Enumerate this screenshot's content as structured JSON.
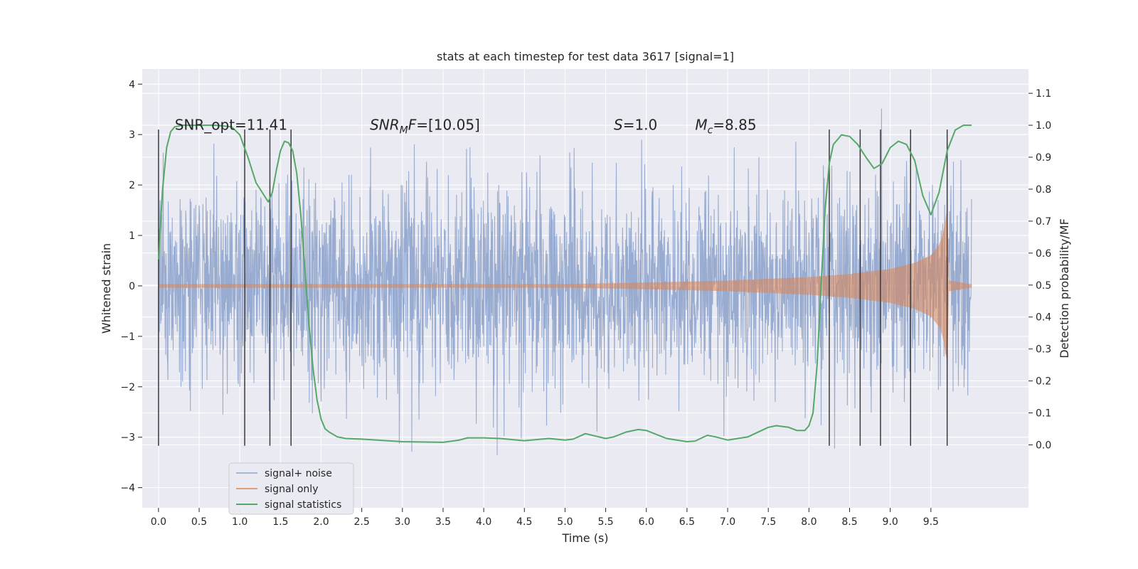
{
  "chart_data": {
    "type": "line",
    "title": "stats at each timestep for test data 3617 [signal=1]",
    "xlabel": "Time (s)",
    "ylabel_left": "Whitened strain",
    "ylabel_right": "Detection probability/MF",
    "xlim": [
      -0.2,
      10.7
    ],
    "ylim_left": [
      -4.4,
      4.3
    ],
    "ylim_right": [
      -0.197,
      1.176
    ],
    "x_ticks": [
      "0.0",
      "0.5",
      "1.0",
      "1.5",
      "2.0",
      "2.5",
      "3.0",
      "3.5",
      "4.0",
      "4.5",
      "5.0",
      "5.5",
      "6.0",
      "6.5",
      "7.0",
      "7.5",
      "8.0",
      "8.5",
      "9.0",
      "9.5"
    ],
    "y_ticks_left": [
      "−4",
      "−3",
      "−2",
      "−1",
      "0",
      "1",
      "2",
      "3",
      "4"
    ],
    "y_ticks_right": [
      "0.0",
      "0.1",
      "0.2",
      "0.3",
      "0.4",
      "0.5",
      "0.6",
      "0.7",
      "0.8",
      "0.9",
      "1.0",
      "1.1"
    ],
    "grid": true,
    "background": "#eaeaf2",
    "colors": {
      "signal_noise": "#8fa4cc",
      "signal_only": "#dd8452",
      "statistics": "#55a868",
      "markers": "#3a3a3a"
    },
    "annotations": [
      {
        "x": 0.2,
        "y": 3.15,
        "text": "SNR_opt=11.41"
      },
      {
        "x": 2.6,
        "y": 3.15,
        "text": "SNR_MF=[10.05]",
        "math": true
      },
      {
        "x": 5.6,
        "y": 3.15,
        "text": "S=1.0",
        "math": true
      },
      {
        "x": 6.6,
        "y": 3.15,
        "text": "M_c=8.85",
        "math": true
      }
    ],
    "series": [
      {
        "name": "signal+ noise",
        "axis": "left",
        "envelope": {
          "x_start": 0.0,
          "x_end": 10.0,
          "dense_band": [
            -1.5,
            1.5
          ],
          "spike_min": -3.6,
          "spike_max": 3.95
        }
      },
      {
        "name": "signal only",
        "axis": "left",
        "chirp": {
          "x_start": 0.0,
          "x_merge": 9.7,
          "x_end": 10.0,
          "amplitude_points": [
            [
              0.0,
              0.03
            ],
            [
              5.0,
              0.03
            ],
            [
              6.0,
              0.06
            ],
            [
              7.0,
              0.1
            ],
            [
              8.0,
              0.17
            ],
            [
              8.5,
              0.23
            ],
            [
              9.0,
              0.33
            ],
            [
              9.3,
              0.45
            ],
            [
              9.5,
              0.6
            ],
            [
              9.6,
              0.8
            ],
            [
              9.65,
              1.0
            ],
            [
              9.7,
              1.5
            ],
            [
              9.72,
              0.1
            ],
            [
              10.0,
              0.03
            ]
          ]
        }
      },
      {
        "name": "signal statistics",
        "axis": "right",
        "x": [
          0.0,
          0.05,
          0.1,
          0.15,
          0.2,
          0.3,
          0.5,
          0.7,
          0.9,
          1.0,
          1.1,
          1.2,
          1.3,
          1.35,
          1.4,
          1.45,
          1.5,
          1.55,
          1.6,
          1.65,
          1.7,
          1.75,
          1.8,
          1.85,
          1.9,
          1.95,
          2.0,
          2.05,
          2.1,
          2.2,
          2.3,
          2.5,
          3.0,
          3.5,
          3.7,
          3.8,
          4.0,
          4.2,
          4.5,
          4.8,
          5.0,
          5.1,
          5.25,
          5.5,
          5.6,
          5.75,
          5.9,
          6.0,
          6.25,
          6.5,
          6.6,
          6.75,
          6.85,
          7.0,
          7.25,
          7.5,
          7.6,
          7.75,
          7.85,
          7.95,
          8.0,
          8.05,
          8.1,
          8.15,
          8.2,
          8.25,
          8.3,
          8.4,
          8.5,
          8.6,
          8.7,
          8.8,
          8.9,
          9.0,
          9.1,
          9.2,
          9.3,
          9.4,
          9.5,
          9.6,
          9.7,
          9.8,
          9.9,
          10.0
        ],
        "values": [
          0.58,
          0.8,
          0.93,
          0.98,
          0.995,
          1.0,
          1.0,
          1.0,
          0.995,
          0.97,
          0.9,
          0.82,
          0.78,
          0.76,
          0.79,
          0.86,
          0.92,
          0.95,
          0.945,
          0.92,
          0.85,
          0.72,
          0.55,
          0.38,
          0.24,
          0.14,
          0.08,
          0.05,
          0.04,
          0.025,
          0.02,
          0.018,
          0.01,
          0.008,
          0.015,
          0.022,
          0.022,
          0.02,
          0.013,
          0.02,
          0.015,
          0.018,
          0.035,
          0.02,
          0.025,
          0.04,
          0.048,
          0.045,
          0.02,
          0.01,
          0.012,
          0.03,
          0.025,
          0.015,
          0.025,
          0.055,
          0.06,
          0.055,
          0.045,
          0.045,
          0.06,
          0.1,
          0.25,
          0.5,
          0.74,
          0.88,
          0.94,
          0.97,
          0.965,
          0.94,
          0.9,
          0.865,
          0.88,
          0.93,
          0.95,
          0.94,
          0.89,
          0.78,
          0.72,
          0.79,
          0.92,
          0.985,
          1.0,
          1.0
        ]
      }
    ],
    "vlines": {
      "x": [
        0.0,
        1.06,
        1.37,
        1.63,
        8.25,
        8.63,
        8.88,
        9.25,
        9.7
      ],
      "ymin": -3.17,
      "ymax": 3.1
    },
    "legend": {
      "placement": "lower-left",
      "entries": [
        "signal+ noise",
        "signal only",
        "signal statistics"
      ]
    }
  }
}
